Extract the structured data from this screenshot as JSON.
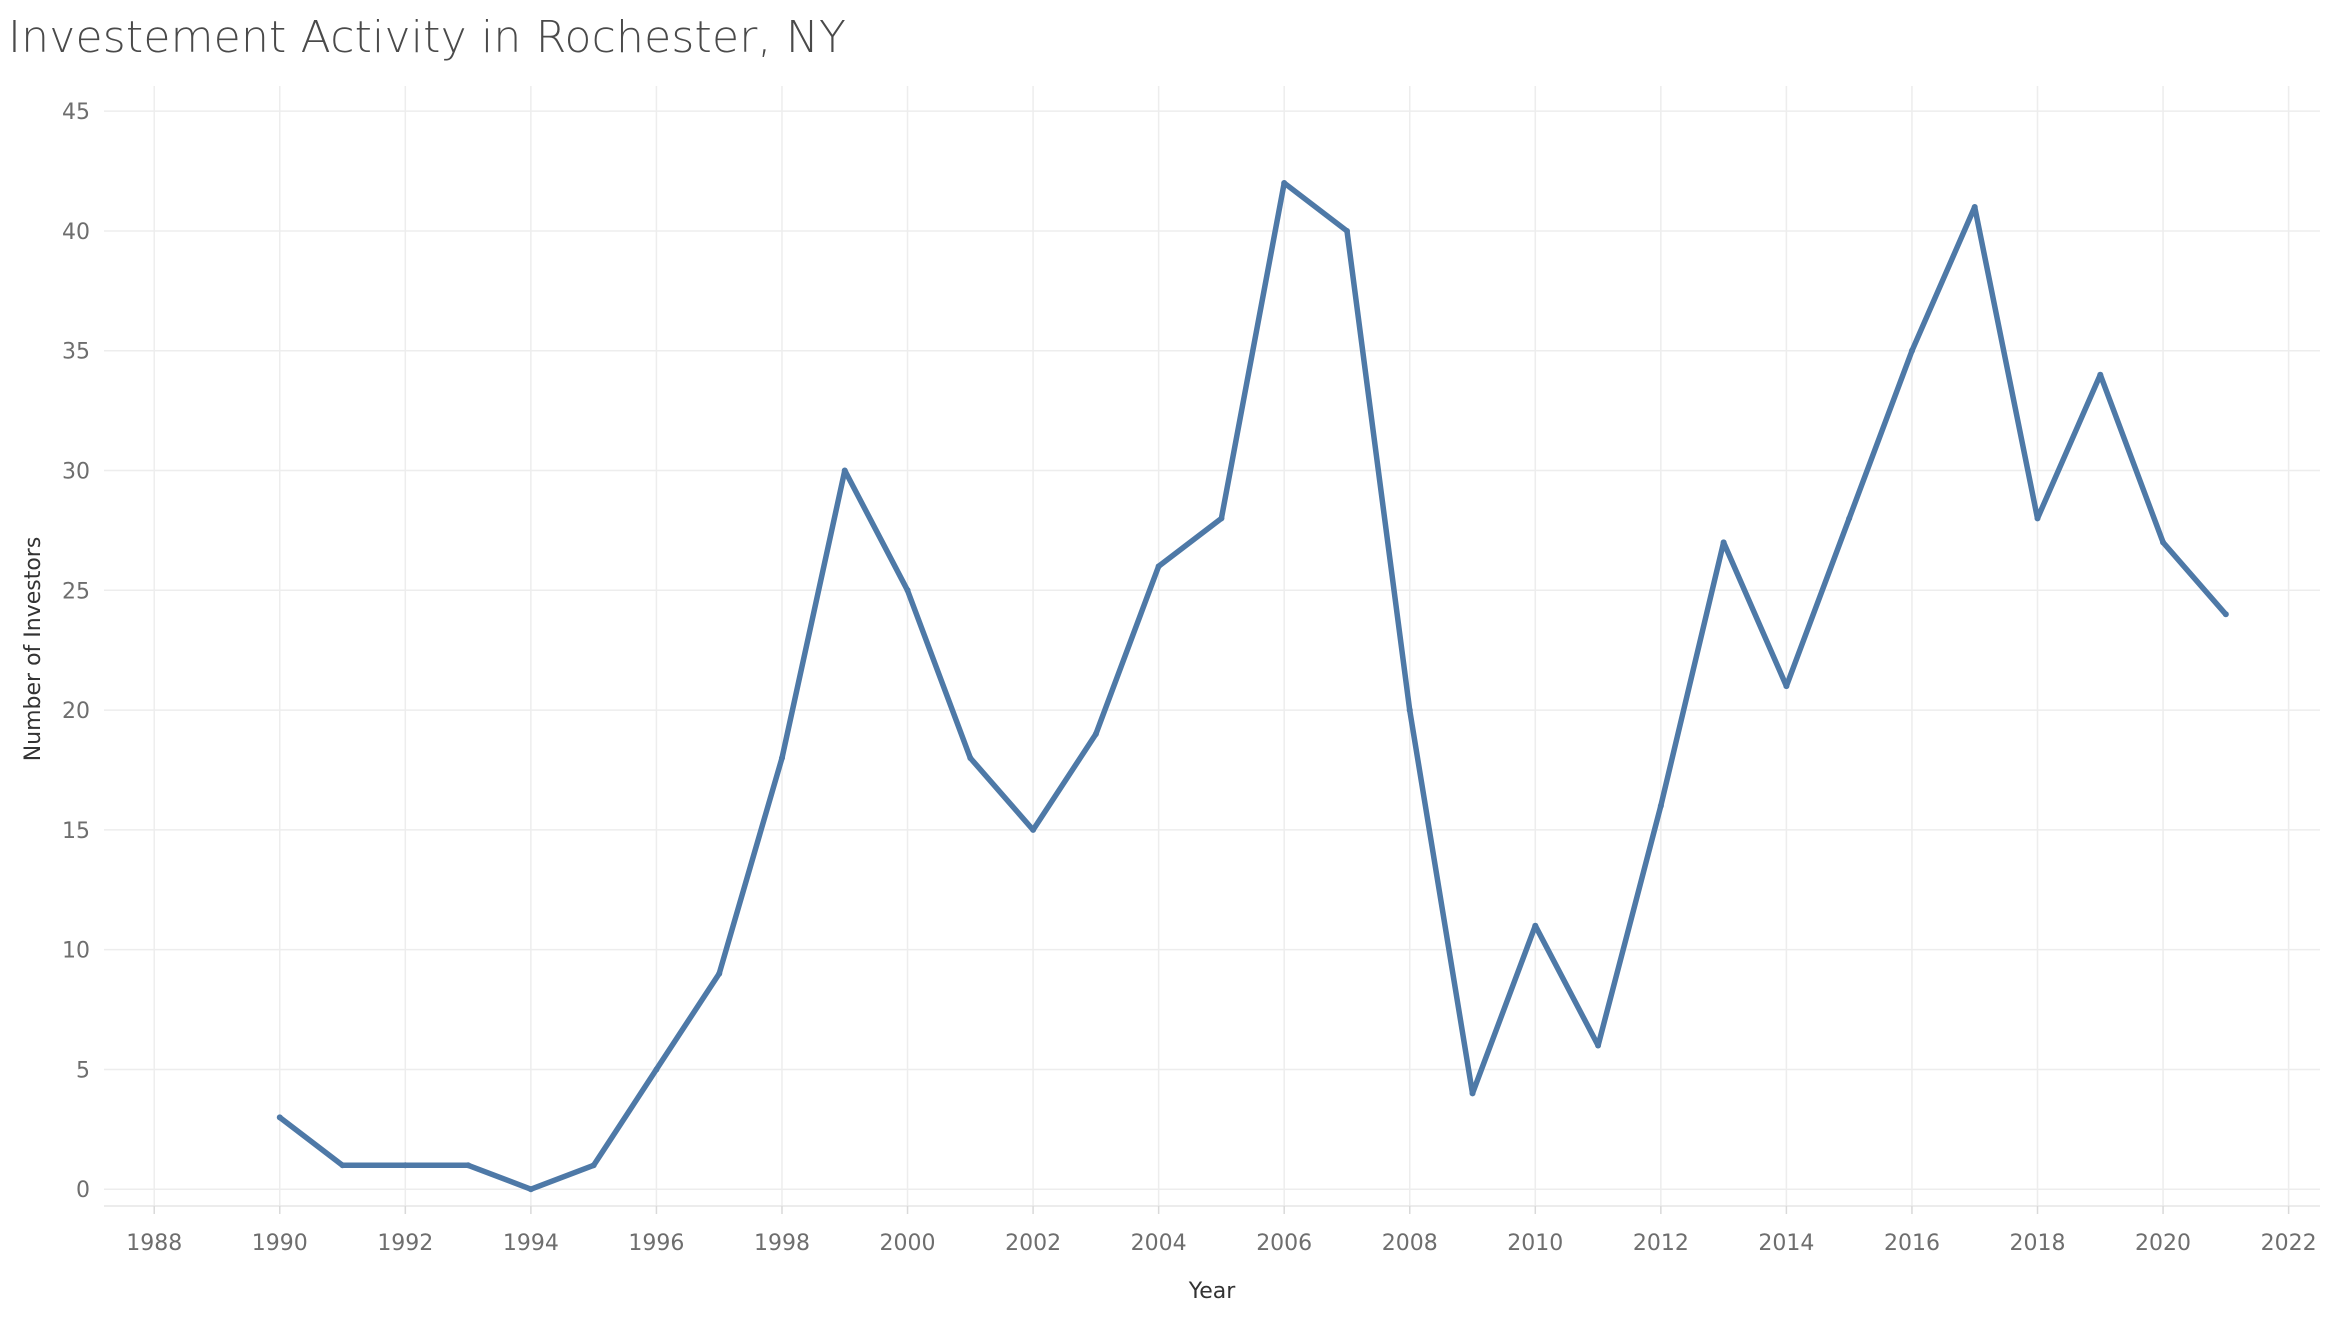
{
  "chart_data": {
    "type": "line",
    "title": "Investement Activity in Rochester, NY",
    "xlabel": "Year",
    "ylabel": "Number of Investors",
    "xlim": [
      1987.2,
      2022.5
    ],
    "ylim": [
      -0.7,
      45.8
    ],
    "x_ticks": [
      1988,
      1990,
      1992,
      1994,
      1996,
      1998,
      2000,
      2002,
      2004,
      2006,
      2008,
      2010,
      2012,
      2014,
      2016,
      2018,
      2020,
      2022
    ],
    "y_ticks": [
      0,
      5,
      10,
      15,
      20,
      25,
      30,
      35,
      40,
      45
    ],
    "grid": true,
    "series": [
      {
        "color": "#4e79a7",
        "x": [
          1990,
          1991,
          1992,
          1993,
          1994,
          1995,
          1996,
          1997,
          1998,
          1999,
          2000,
          2001,
          2002,
          2003,
          2004,
          2005,
          2006,
          2007,
          2008,
          2009,
          2010,
          2011,
          2012,
          2013,
          2014,
          2015,
          2016,
          2017,
          2018,
          2019,
          2020,
          2021
        ],
        "y": [
          3,
          1,
          1,
          1,
          0,
          1,
          5,
          9,
          18,
          30,
          25,
          18,
          15,
          19,
          26,
          28,
          42,
          40,
          20,
          4,
          11,
          6,
          16,
          27,
          21,
          28,
          35,
          41,
          28,
          34,
          27,
          24
        ]
      }
    ]
  }
}
